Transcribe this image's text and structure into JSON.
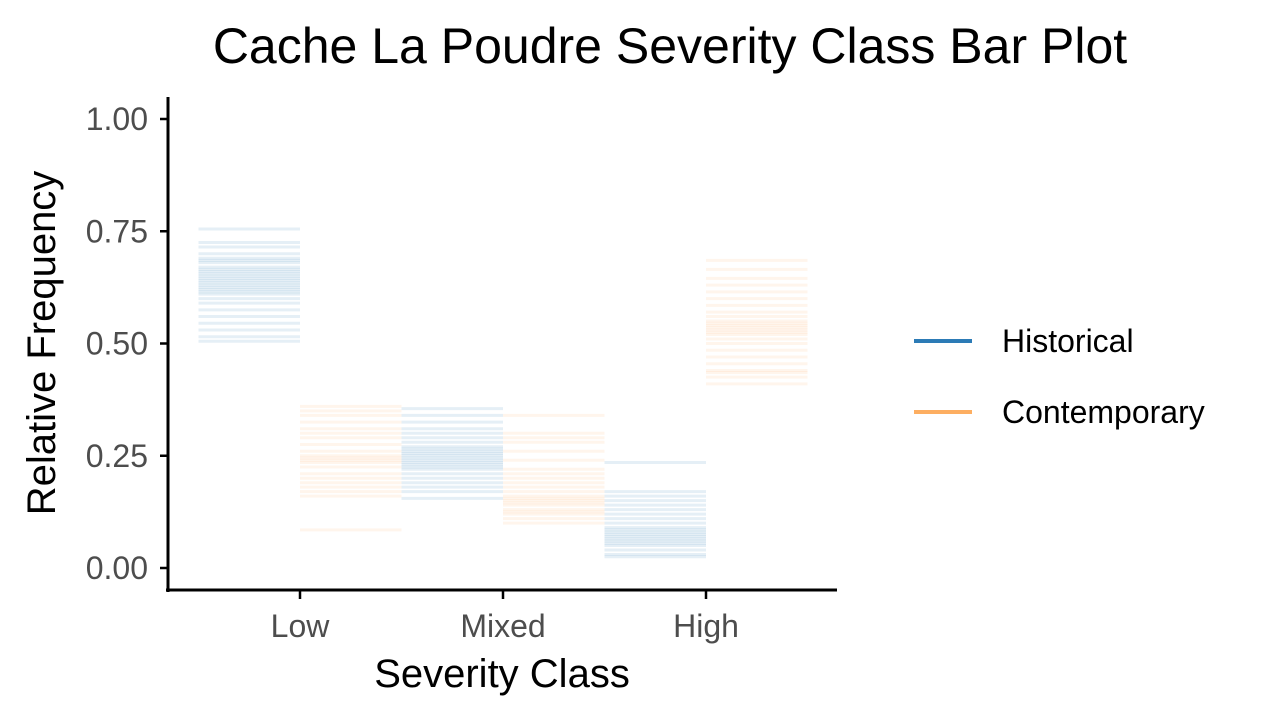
{
  "chart_data": {
    "type": "bar",
    "title": "Cache La Poudre Severity Class Bar Plot",
    "xlabel": "Severity Class",
    "ylabel": "Relative Frequency",
    "categories": [
      "Low",
      "Mixed",
      "High"
    ],
    "ylim": [
      -0.05,
      1.05
    ],
    "yticks": [
      "0.00",
      "0.25",
      "0.50",
      "0.75",
      "1.00"
    ],
    "ytick_values": [
      0,
      0.25,
      0.5,
      0.75,
      1.0
    ],
    "grid": false,
    "legend_position": "right",
    "series": [
      {
        "name": "Historical",
        "color": "#2c7bb6",
        "values": [
          [
            0.755,
            0.725,
            0.715,
            0.7,
            0.69,
            0.685,
            0.68,
            0.67,
            0.665,
            0.66,
            0.655,
            0.65,
            0.645,
            0.64,
            0.635,
            0.63,
            0.625,
            0.62,
            0.615,
            0.61,
            0.6,
            0.59,
            0.575,
            0.56,
            0.545,
            0.53,
            0.515,
            0.505
          ],
          [
            0.355,
            0.34,
            0.325,
            0.31,
            0.3,
            0.29,
            0.28,
            0.27,
            0.265,
            0.26,
            0.255,
            0.25,
            0.245,
            0.24,
            0.235,
            0.23,
            0.225,
            0.22,
            0.21,
            0.2,
            0.19,
            0.18,
            0.17,
            0.155
          ],
          [
            0.235,
            0.17,
            0.16,
            0.15,
            0.14,
            0.13,
            0.12,
            0.11,
            0.1,
            0.09,
            0.085,
            0.08,
            0.075,
            0.07,
            0.065,
            0.06,
            0.055,
            0.05,
            0.04,
            0.03,
            0.025
          ]
        ]
      },
      {
        "name": "Contemporary",
        "color": "#fdae61",
        "values": [
          [
            0.36,
            0.35,
            0.34,
            0.325,
            0.31,
            0.3,
            0.29,
            0.275,
            0.26,
            0.25,
            0.245,
            0.24,
            0.235,
            0.225,
            0.21,
            0.2,
            0.19,
            0.18,
            0.17,
            0.16,
            0.085
          ],
          [
            0.34,
            0.3,
            0.29,
            0.28,
            0.26,
            0.24,
            0.22,
            0.21,
            0.2,
            0.19,
            0.18,
            0.17,
            0.16,
            0.155,
            0.15,
            0.145,
            0.14,
            0.13,
            0.125,
            0.12,
            0.11,
            0.1
          ],
          [
            0.685,
            0.665,
            0.645,
            0.63,
            0.615,
            0.6,
            0.585,
            0.57,
            0.56,
            0.55,
            0.545,
            0.54,
            0.535,
            0.53,
            0.525,
            0.52,
            0.51,
            0.5,
            0.485,
            0.47,
            0.455,
            0.44,
            0.435,
            0.425,
            0.41
          ]
        ]
      }
    ]
  }
}
